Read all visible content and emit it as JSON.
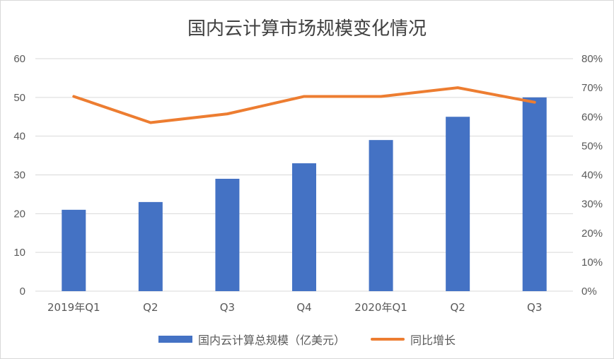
{
  "chart_data": {
    "type": "bar",
    "title": "国内云计算市场规模变化情况",
    "categories": [
      "2019年Q1",
      "Q2",
      "Q3",
      "Q4",
      "2020年Q1",
      "Q2",
      "Q3"
    ],
    "series": [
      {
        "name": "国内云计算总规模（亿美元）",
        "type": "bar",
        "axis": "left",
        "color": "#4472c4",
        "values": [
          21,
          23,
          29,
          33,
          39,
          45,
          50
        ]
      },
      {
        "name": "同比增长",
        "type": "line",
        "axis": "right",
        "color": "#ed7d31",
        "values": [
          0.67,
          0.58,
          0.61,
          0.67,
          0.67,
          0.7,
          0.65
        ]
      }
    ],
    "y_left": {
      "min": 0,
      "max": 60,
      "step": 10,
      "ticks": [
        "0",
        "10",
        "20",
        "30",
        "40",
        "50",
        "60"
      ]
    },
    "y_right": {
      "min": 0,
      "max": 0.8,
      "step": 0.1,
      "ticks": [
        "0%",
        "10%",
        "20%",
        "30%",
        "40%",
        "50%",
        "60%",
        "70%",
        "80%"
      ]
    },
    "grid": true,
    "legend": "bottom"
  }
}
